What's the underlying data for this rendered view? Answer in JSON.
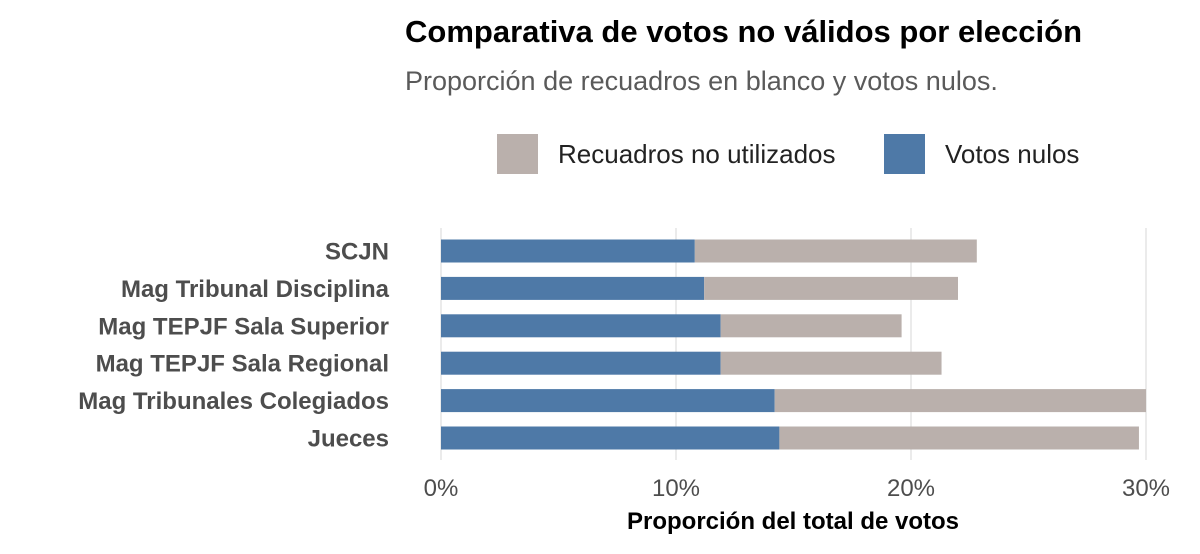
{
  "chart_data": {
    "type": "bar",
    "orientation": "horizontal",
    "stacked": true,
    "title": "Comparativa de votos no válidos por elección",
    "subtitle": "Proporción de recuadros en blanco y votos nulos.",
    "xlabel": "Proporción del total de votos",
    "ylabel": "",
    "xlim": [
      0,
      30
    ],
    "x_ticks": [
      0,
      10,
      20,
      30
    ],
    "x_tick_labels": [
      "0%",
      "10%",
      "20%",
      "30%"
    ],
    "grid": true,
    "legend_position": "top",
    "categories": [
      "SCJN",
      "Mag Tribunal Disciplina",
      "Mag TEPJF Sala Superior",
      "Mag TEPJF Sala Regional",
      "Mag Tribunales Colegiados",
      "Jueces"
    ],
    "series": [
      {
        "name": "Votos nulos",
        "color": "#4e79a7",
        "values": [
          10.8,
          11.2,
          11.9,
          11.9,
          14.2,
          14.4
        ]
      },
      {
        "name": "Recuadros no utilizados",
        "color": "#bab0ac",
        "values": [
          12.0,
          10.8,
          7.7,
          9.4,
          15.8,
          15.3
        ]
      }
    ],
    "legend_order": [
      "Recuadros no utilizados",
      "Votos nulos"
    ]
  }
}
